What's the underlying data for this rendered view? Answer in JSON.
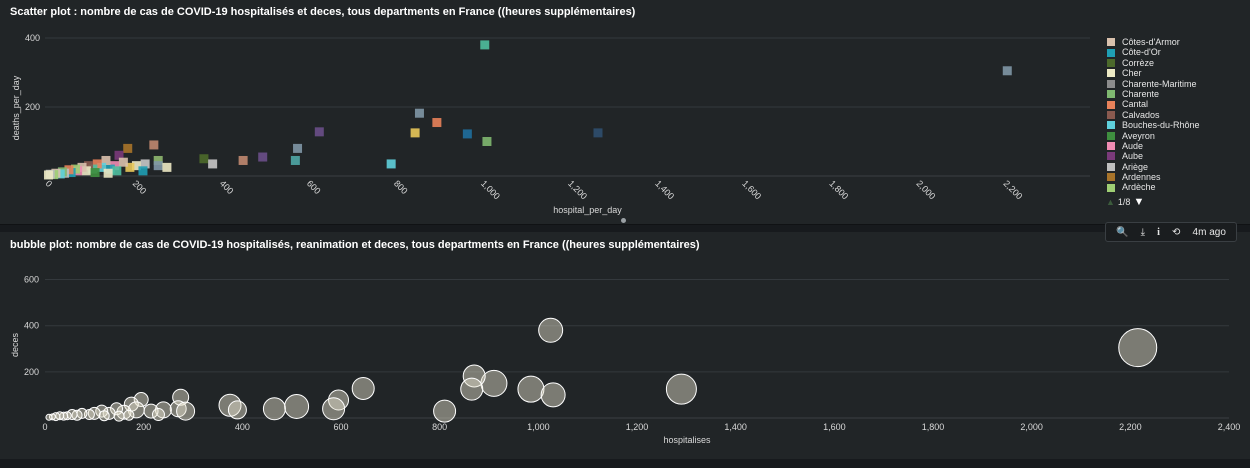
{
  "charts": {
    "scatter": {
      "title": "Scatter plot : nombre de cas de COVID-19 hospitalisés et deces, tous departments en France ((heures supplémentaires)"
    },
    "bubble": {
      "title": "bubble plot: nombre de cas de COVID-19 hospitalisés, reanimation et deces, tous departments en France ((heures supplémentaires)"
    }
  },
  "legend": {
    "items": [
      {
        "label": "Côtes-d'Armor",
        "color": "#d9c1ad"
      },
      {
        "label": "Côte-d'Or",
        "color": "#1f9fb4"
      },
      {
        "label": "Corrèze",
        "color": "#4c6a2b"
      },
      {
        "label": "Cher",
        "color": "#ece9c4"
      },
      {
        "label": "Charente-Maritime",
        "color": "#8c8c8c"
      },
      {
        "label": "Charente",
        "color": "#7fb870"
      },
      {
        "label": "Cantal",
        "color": "#e8825a"
      },
      {
        "label": "Calvados",
        "color": "#8a5a4f"
      },
      {
        "label": "Bouches-du-Rhône",
        "color": "#5fd0dc"
      },
      {
        "label": "Aveyron",
        "color": "#3f8f3f"
      },
      {
        "label": "Aude",
        "color": "#f08cb4"
      },
      {
        "label": "Aube",
        "color": "#7a3a7a"
      },
      {
        "label": "Ariège",
        "color": "#bfbfbf"
      },
      {
        "label": "Ardennes",
        "color": "#a8742a"
      },
      {
        "label": "Ardèche",
        "color": "#9fce74"
      }
    ],
    "page": "1/8"
  },
  "toolbar": {
    "search_icon": "🔍",
    "download_icon": "⤓",
    "info_icon": "i",
    "refresh_icon": "⟲",
    "time_ago": "4m ago"
  },
  "chart_data": [
    {
      "type": "scatter",
      "title": "Scatter plot : nombre de cas de COVID-19 hospitalisés et deces, tous departments en France ((heures supplémentaires)",
      "xlabel": "hospital_per_day",
      "ylabel": "deaths_per_day",
      "xlim": [
        0,
        2400
      ],
      "ylim": [
        0,
        400
      ],
      "xticks": [
        0,
        200,
        400,
        600,
        800,
        1000,
        1200,
        1400,
        1600,
        1800,
        2000,
        2200
      ],
      "xtick_labels": [
        "0",
        "200",
        "400",
        "600",
        "800",
        "1,000",
        "1,200",
        "1,400",
        "1,600",
        "1,800",
        "2,000",
        "2,200"
      ],
      "yticks": [
        200,
        400
      ],
      "ytick_labels": [
        "200",
        "400"
      ],
      "grid": true,
      "legend": "right",
      "points": [
        {
          "x": 1010,
          "y": 380,
          "color": "#4fbf9f"
        },
        {
          "x": 2210,
          "y": 305,
          "color": "#7f97a6"
        },
        {
          "x": 860,
          "y": 182,
          "color": "#7f97a6"
        },
        {
          "x": 900,
          "y": 155,
          "color": "#e8825a"
        },
        {
          "x": 630,
          "y": 128,
          "color": "#6a4f8a"
        },
        {
          "x": 850,
          "y": 125,
          "color": "#e8c85a"
        },
        {
          "x": 970,
          "y": 122,
          "color": "#1f6f9f"
        },
        {
          "x": 1270,
          "y": 125,
          "color": "#2f4f6f"
        },
        {
          "x": 1015,
          "y": 100,
          "color": "#7fb870"
        },
        {
          "x": 580,
          "y": 80,
          "color": "#7f97a6"
        },
        {
          "x": 795,
          "y": 35,
          "color": "#5fd0dc"
        },
        {
          "x": 575,
          "y": 45,
          "color": "#4fa7a6"
        },
        {
          "x": 500,
          "y": 55,
          "color": "#6a4f8a"
        },
        {
          "x": 455,
          "y": 45,
          "color": "#c08870"
        },
        {
          "x": 365,
          "y": 50,
          "color": "#4c6a2b"
        },
        {
          "x": 385,
          "y": 35,
          "color": "#c8c8c8"
        },
        {
          "x": 250,
          "y": 90,
          "color": "#c08870"
        },
        {
          "x": 190,
          "y": 80,
          "color": "#a8742a"
        },
        {
          "x": 170,
          "y": 60,
          "color": "#7a3a7a"
        },
        {
          "x": 260,
          "y": 45,
          "color": "#8fb870"
        },
        {
          "x": 260,
          "y": 30,
          "color": "#7f97a6"
        },
        {
          "x": 280,
          "y": 25,
          "color": "#ece9c4"
        },
        {
          "x": 230,
          "y": 35,
          "color": "#c8c8c8"
        },
        {
          "x": 210,
          "y": 30,
          "color": "#ece9c4"
        },
        {
          "x": 195,
          "y": 25,
          "color": "#e8c85a"
        },
        {
          "x": 180,
          "y": 40,
          "color": "#d9c1ad"
        },
        {
          "x": 160,
          "y": 30,
          "color": "#f08cb4"
        },
        {
          "x": 150,
          "y": 20,
          "color": "#1f9fb4"
        },
        {
          "x": 140,
          "y": 45,
          "color": "#d9c1ad"
        },
        {
          "x": 130,
          "y": 25,
          "color": "#5fd0dc"
        },
        {
          "x": 120,
          "y": 35,
          "color": "#e8825a"
        },
        {
          "x": 110,
          "y": 20,
          "color": "#4fbf9f"
        },
        {
          "x": 100,
          "y": 30,
          "color": "#8a5a4f"
        },
        {
          "x": 95,
          "y": 15,
          "color": "#ece9c4"
        },
        {
          "x": 85,
          "y": 25,
          "color": "#d9c1ad"
        },
        {
          "x": 75,
          "y": 15,
          "color": "#f08cb4"
        },
        {
          "x": 70,
          "y": 20,
          "color": "#9fce74"
        },
        {
          "x": 60,
          "y": 10,
          "color": "#1f9fb4"
        },
        {
          "x": 55,
          "y": 18,
          "color": "#e8825a"
        },
        {
          "x": 45,
          "y": 8,
          "color": "#bfbfbf"
        },
        {
          "x": 40,
          "y": 12,
          "color": "#7fb870"
        },
        {
          "x": 35,
          "y": 6,
          "color": "#5fd0dc"
        },
        {
          "x": 25,
          "y": 8,
          "color": "#d9c1ad"
        },
        {
          "x": 20,
          "y": 4,
          "color": "#9fce74"
        },
        {
          "x": 12,
          "y": 5,
          "color": "#bfbfbf"
        },
        {
          "x": 8,
          "y": 3,
          "color": "#ece9c4"
        },
        {
          "x": 115,
          "y": 10,
          "color": "#3f8f3f"
        },
        {
          "x": 165,
          "y": 15,
          "color": "#4fbf9f"
        },
        {
          "x": 225,
          "y": 15,
          "color": "#1f9fb4"
        },
        {
          "x": 145,
          "y": 8,
          "color": "#ece9c4"
        }
      ]
    },
    {
      "type": "scatter",
      "subtype": "bubble",
      "title": "bubble plot: nombre de cas de COVID-19 hospitalisés, reanimation et deces, tous departments en France ((heures supplémentaires)",
      "xlabel": "hospitalises",
      "ylabel": "deces",
      "xlim": [
        0,
        2400
      ],
      "ylim": [
        0,
        650
      ],
      "xticks": [
        0,
        200,
        400,
        600,
        800,
        1000,
        1200,
        1400,
        1600,
        1800,
        2000,
        2200,
        2400
      ],
      "xtick_labels": [
        "0",
        "200",
        "400",
        "600",
        "800",
        "1,000",
        "1,200",
        "1,400",
        "1,600",
        "1,800",
        "2,000",
        "2,200",
        "2,400"
      ],
      "yticks": [
        200,
        400,
        600
      ],
      "ytick_labels": [
        "200",
        "400",
        "600"
      ],
      "grid": true,
      "bubble_color": "#e8e4d0",
      "points": [
        {
          "x": 2215,
          "y": 305,
          "r": 19
        },
        {
          "x": 1025,
          "y": 380,
          "r": 12
        },
        {
          "x": 1290,
          "y": 125,
          "r": 15
        },
        {
          "x": 910,
          "y": 150,
          "r": 13
        },
        {
          "x": 985,
          "y": 125,
          "r": 13
        },
        {
          "x": 1030,
          "y": 100,
          "r": 12
        },
        {
          "x": 870,
          "y": 182,
          "r": 11
        },
        {
          "x": 865,
          "y": 125,
          "r": 11
        },
        {
          "x": 645,
          "y": 128,
          "r": 11
        },
        {
          "x": 595,
          "y": 78,
          "r": 10
        },
        {
          "x": 585,
          "y": 40,
          "r": 11
        },
        {
          "x": 510,
          "y": 50,
          "r": 12
        },
        {
          "x": 465,
          "y": 40,
          "r": 11
        },
        {
          "x": 375,
          "y": 55,
          "r": 11
        },
        {
          "x": 390,
          "y": 35,
          "r": 9
        },
        {
          "x": 810,
          "y": 30,
          "r": 11
        },
        {
          "x": 275,
          "y": 90,
          "r": 8
        },
        {
          "x": 270,
          "y": 40,
          "r": 8
        },
        {
          "x": 285,
          "y": 30,
          "r": 9
        },
        {
          "x": 240,
          "y": 35,
          "r": 8
        },
        {
          "x": 215,
          "y": 30,
          "r": 7
        },
        {
          "x": 195,
          "y": 80,
          "r": 7
        },
        {
          "x": 175,
          "y": 60,
          "r": 7
        },
        {
          "x": 185,
          "y": 35,
          "r": 8
        },
        {
          "x": 160,
          "y": 25,
          "r": 7
        },
        {
          "x": 145,
          "y": 40,
          "r": 6
        },
        {
          "x": 130,
          "y": 20,
          "r": 6
        },
        {
          "x": 115,
          "y": 30,
          "r": 6
        },
        {
          "x": 100,
          "y": 20,
          "r": 6
        },
        {
          "x": 90,
          "y": 15,
          "r": 5
        },
        {
          "x": 75,
          "y": 20,
          "r": 5
        },
        {
          "x": 65,
          "y": 12,
          "r": 5
        },
        {
          "x": 55,
          "y": 15,
          "r": 5
        },
        {
          "x": 45,
          "y": 10,
          "r": 4
        },
        {
          "x": 38,
          "y": 8,
          "r": 4
        },
        {
          "x": 30,
          "y": 10,
          "r": 4
        },
        {
          "x": 22,
          "y": 6,
          "r": 4
        },
        {
          "x": 15,
          "y": 5,
          "r": 3
        },
        {
          "x": 8,
          "y": 3,
          "r": 3
        },
        {
          "x": 120,
          "y": 10,
          "r": 5
        },
        {
          "x": 170,
          "y": 12,
          "r": 5
        },
        {
          "x": 230,
          "y": 15,
          "r": 6
        },
        {
          "x": 150,
          "y": 8,
          "r": 5
        }
      ]
    }
  ]
}
